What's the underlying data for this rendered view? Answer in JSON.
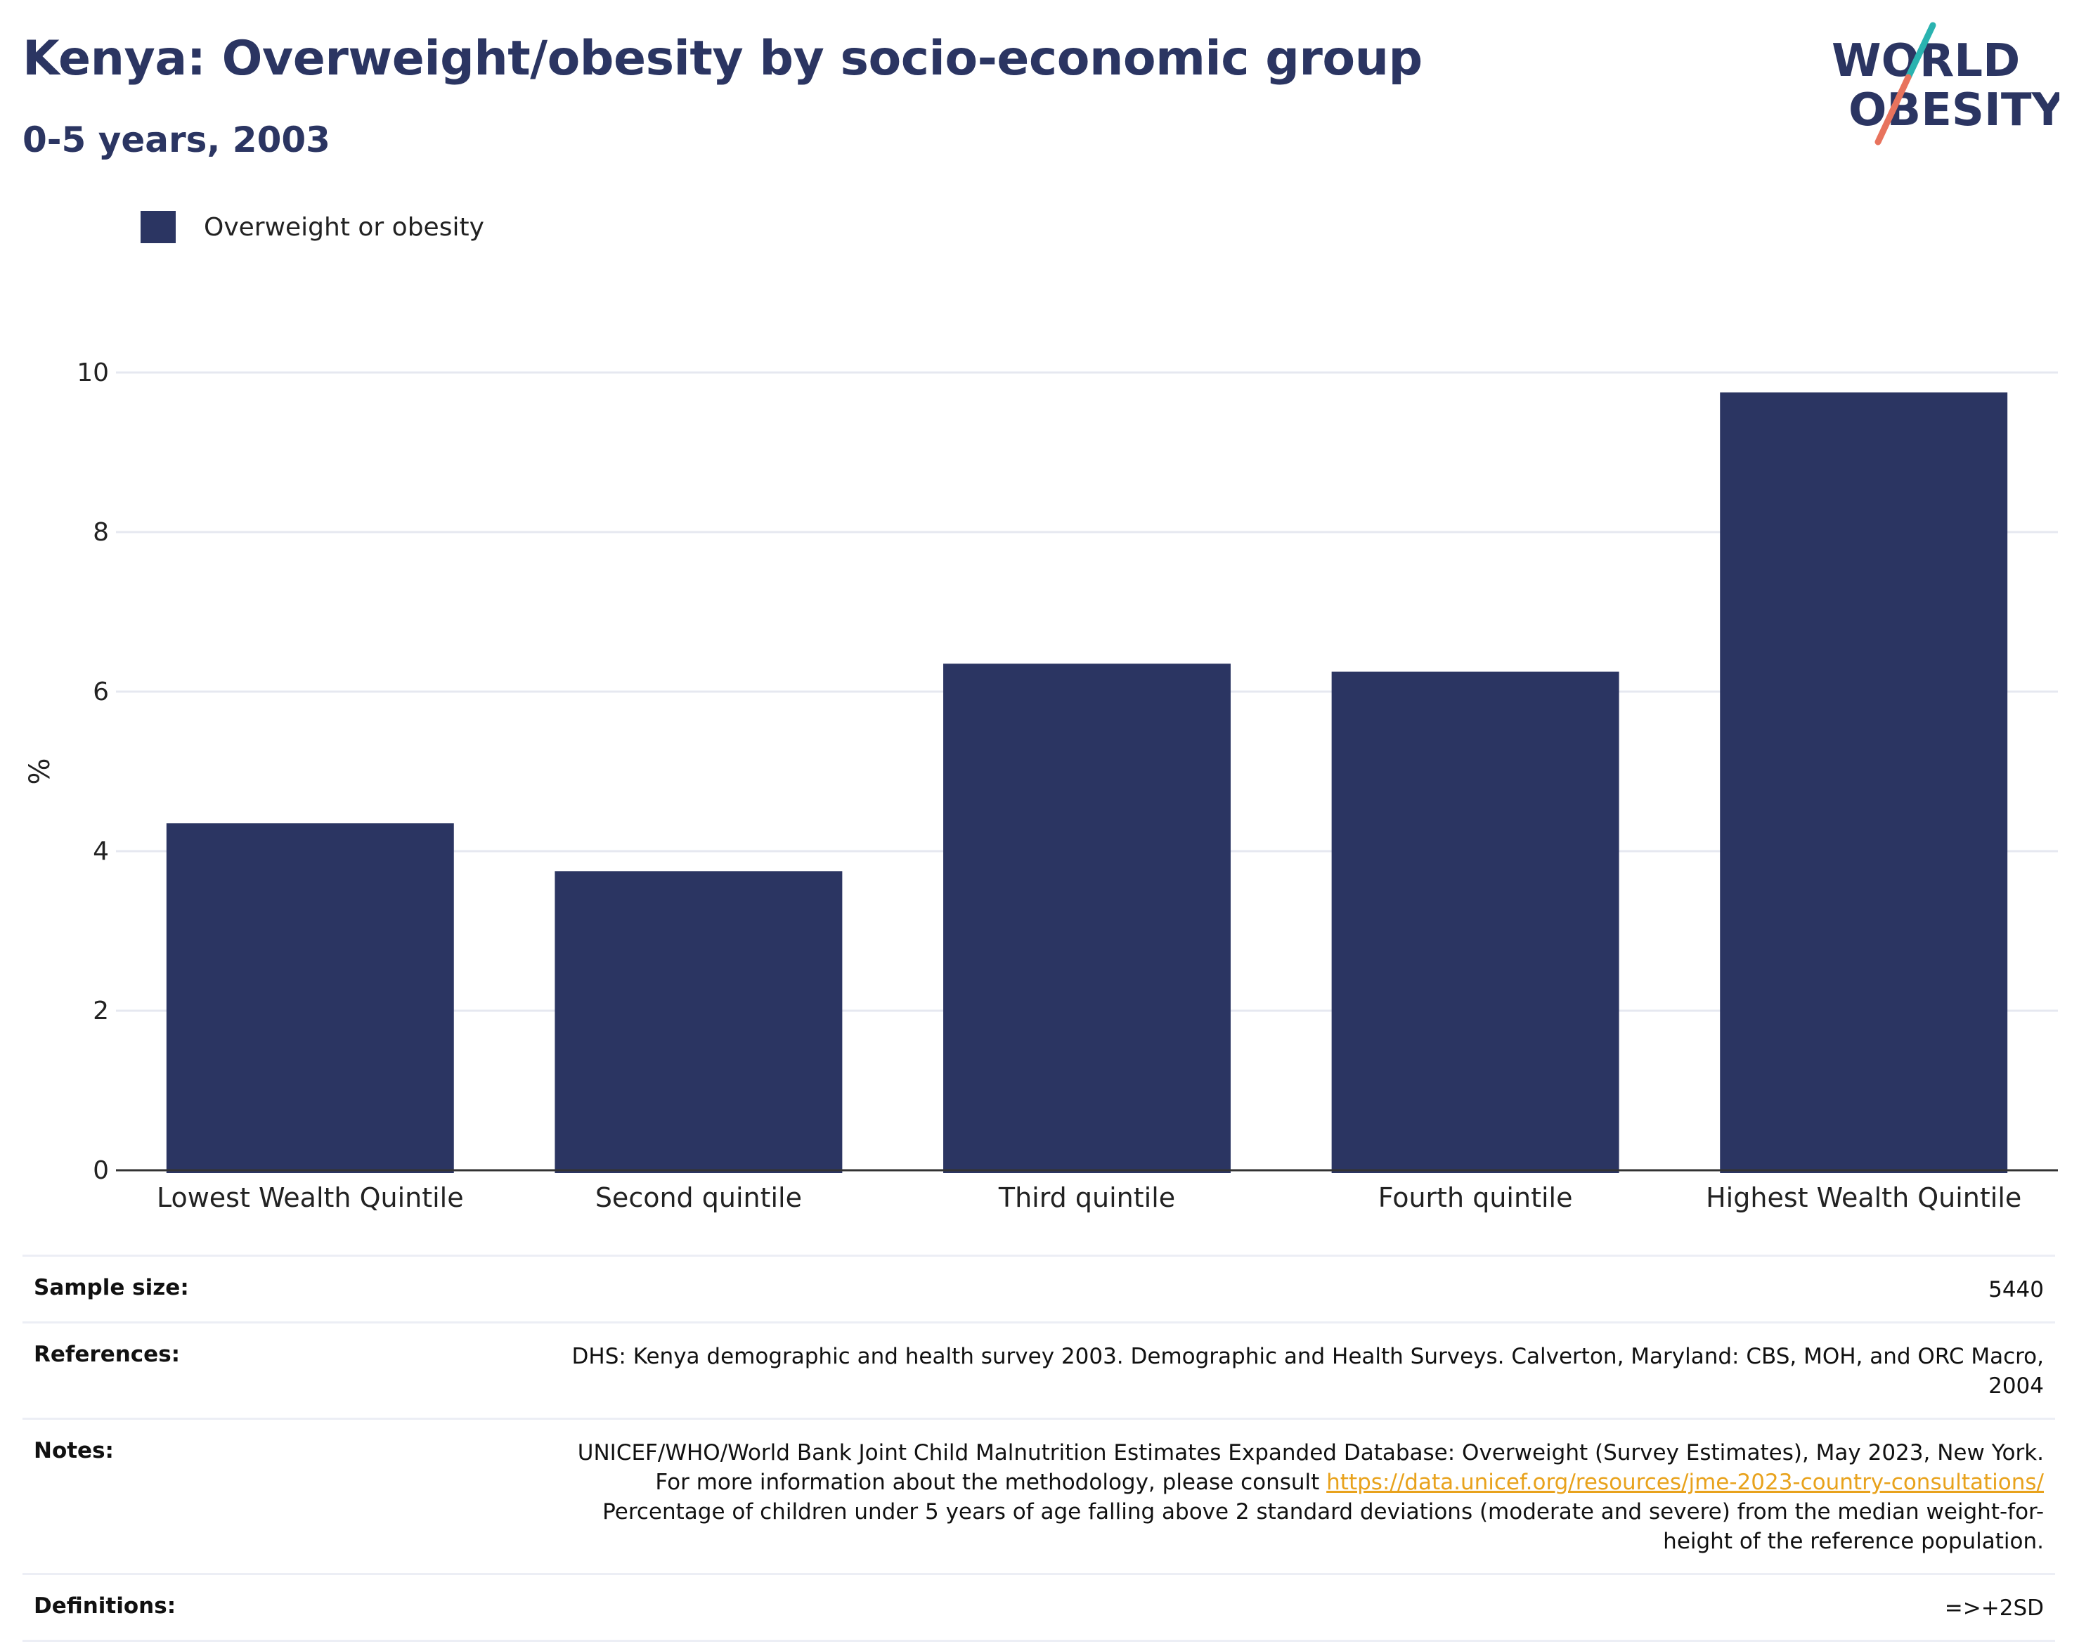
{
  "title": "Kenya: Overweight/obesity by socio-economic group",
  "subtitle": "0-5 years, 2003",
  "logo": {
    "line1": "WORLD",
    "line2": "OBESITY",
    "colors": {
      "text": "#2b3562",
      "slash_top": "#2ab3b0",
      "slash_bottom": "#e8735d"
    }
  },
  "legend": {
    "label": "Overweight or obesity",
    "color": "#2b3562"
  },
  "chart_data": {
    "type": "bar",
    "categories": [
      "Lowest Wealth Quintile",
      "Second quintile",
      "Third quintile",
      "Fourth quintile",
      "Highest Wealth Quintile"
    ],
    "series": [
      {
        "name": "Overweight or obesity",
        "values": [
          4.35,
          3.75,
          6.35,
          6.25,
          9.75
        ],
        "color": "#2b3562"
      }
    ],
    "ylabel": "%",
    "ylim": [
      0,
      10
    ],
    "yticks": [
      0,
      2,
      4,
      6,
      8,
      10
    ],
    "grid": true,
    "legend_position": "top-left"
  },
  "info": {
    "sample_size": {
      "label": "Sample size:",
      "value": "5440"
    },
    "references": {
      "label": "References:",
      "value": "DHS: Kenya demographic and health survey 2003. Demographic and Health Surveys. Calverton, Maryland: CBS, MOH, and ORC Macro, 2004"
    },
    "notes": {
      "label": "Notes:",
      "text_before": "UNICEF/WHO/World Bank Joint Child Malnutrition Estimates Expanded Database: Overweight (Survey Estimates), May 2023, New York. For more information about the methodology, please consult ",
      "link": "https://data.unicef.org/resources/jme-2023-country-consultations/",
      "text_after": " Percentage of children under 5 years of age falling above 2 standard deviations (moderate and severe) from the median weight-for-height of the reference population."
    },
    "definitions": {
      "label": "Definitions:",
      "value": "=>+2SD"
    }
  }
}
